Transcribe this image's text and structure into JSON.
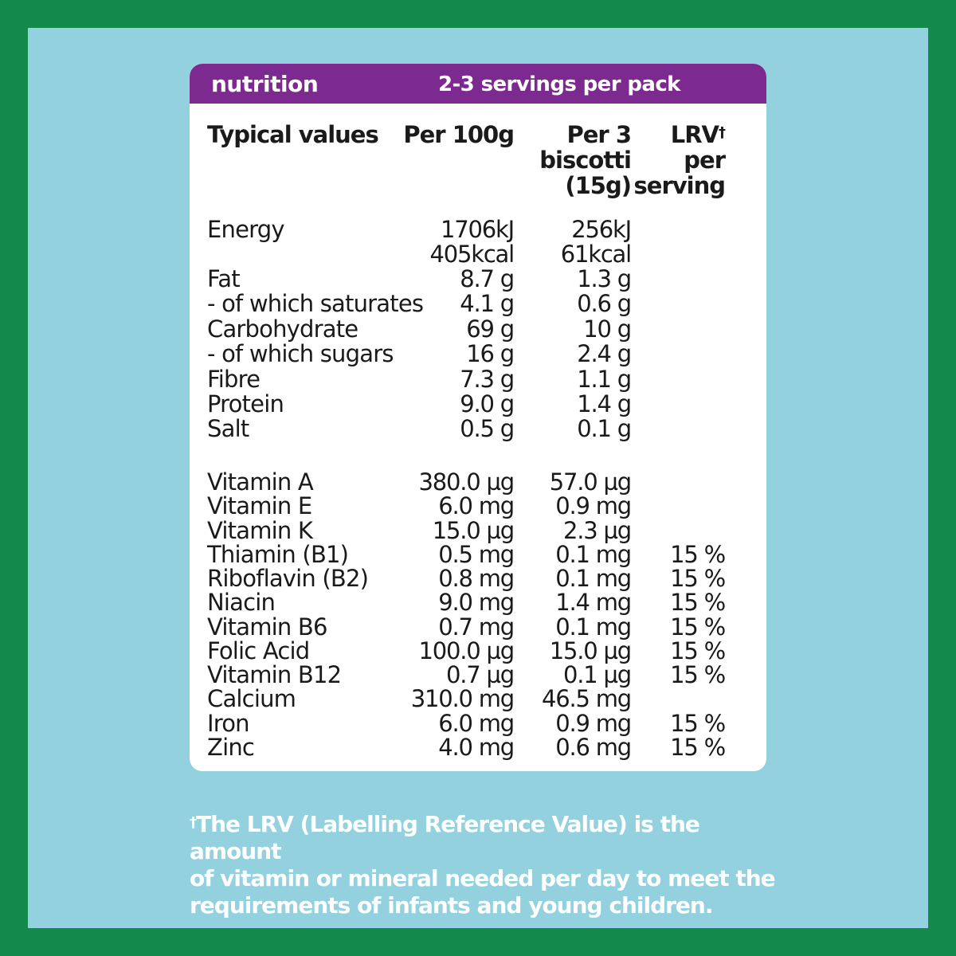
{
  "header": {
    "title": "nutrition",
    "servings": "2-3 servings per pack"
  },
  "columns": {
    "typical": "Typical values",
    "per100": "Per 100g",
    "perServing": [
      "Per 3",
      "biscotti",
      "(15g)"
    ],
    "lrv": [
      "LRV",
      "per",
      "serving"
    ],
    "lrv_mark": "†"
  },
  "energy": {
    "label": "Energy",
    "kj_100": "1706kJ",
    "kcal_100": "405kcal",
    "kj_serving": "256kJ",
    "kcal_serving": "61kcal"
  },
  "nutrients": [
    {
      "label": "Fat",
      "per100": "8.7 g",
      "serving": "1.3 g",
      "lrv": ""
    },
    {
      "label": "- of which saturates",
      "per100": "4.1 g",
      "serving": "0.6 g",
      "lrv": ""
    },
    {
      "label": "Carbohydrate",
      "per100": "69 g",
      "serving": "10 g",
      "lrv": ""
    },
    {
      "label": "- of which sugars",
      "per100": "16 g",
      "serving": "2.4 g",
      "lrv": ""
    },
    {
      "label": "Fibre",
      "per100": "7.3 g",
      "serving": "1.1 g",
      "lrv": ""
    },
    {
      "label": "Protein",
      "per100": "9.0 g",
      "serving": "1.4 g",
      "lrv": ""
    },
    {
      "label": "Salt",
      "per100": "0.5 g",
      "serving": "0.1 g",
      "lrv": ""
    }
  ],
  "vitamins": [
    {
      "label": "Vitamin A",
      "per100": "380.0 µg",
      "serving": "57.0 µg",
      "lrv": ""
    },
    {
      "label": "Vitamin E",
      "per100": "6.0 mg",
      "serving": "0.9 mg",
      "lrv": ""
    },
    {
      "label": "Vitamin K",
      "per100": "15.0 µg",
      "serving": "2.3 µg",
      "lrv": ""
    },
    {
      "label": "Thiamin (B1)",
      "per100": "0.5 mg",
      "serving": "0.1 mg",
      "lrv": "15 %"
    },
    {
      "label": "Riboflavin (B2)",
      "per100": "0.8 mg",
      "serving": "0.1 mg",
      "lrv": "15 %"
    },
    {
      "label": "Niacin",
      "per100": "9.0 mg",
      "serving": "1.4 mg",
      "lrv": "15 %"
    },
    {
      "label": "Vitamin B6",
      "per100": "0.7 mg",
      "serving": "0.1 mg",
      "lrv": "15 %"
    },
    {
      "label": "Folic Acid",
      "per100": "100.0 µg",
      "serving": "15.0 µg",
      "lrv": "15 %"
    },
    {
      "label": "Vitamin B12",
      "per100": "0.7 µg",
      "serving": "0.1 µg",
      "lrv": "15 %"
    },
    {
      "label": "Calcium",
      "per100": "310.0 mg",
      "serving": "46.5 mg",
      "lrv": ""
    },
    {
      "label": "Iron",
      "per100": "6.0 mg",
      "serving": "0.9 mg",
      "lrv": "15 %"
    },
    {
      "label": "Zinc",
      "per100": "4.0 mg",
      "serving": "0.6 mg",
      "lrv": "15 %"
    }
  ],
  "footnote": {
    "mark": "†",
    "lines": [
      "The LRV (Labelling Reference Value) is the amount",
      "of vitamin or mineral needed per day to meet the",
      "requirements of infants and young children."
    ]
  },
  "colors": {
    "outer_border": "#138a4c",
    "background": "#94d1df",
    "header": "#7d2a90",
    "card": "#ffffff"
  }
}
